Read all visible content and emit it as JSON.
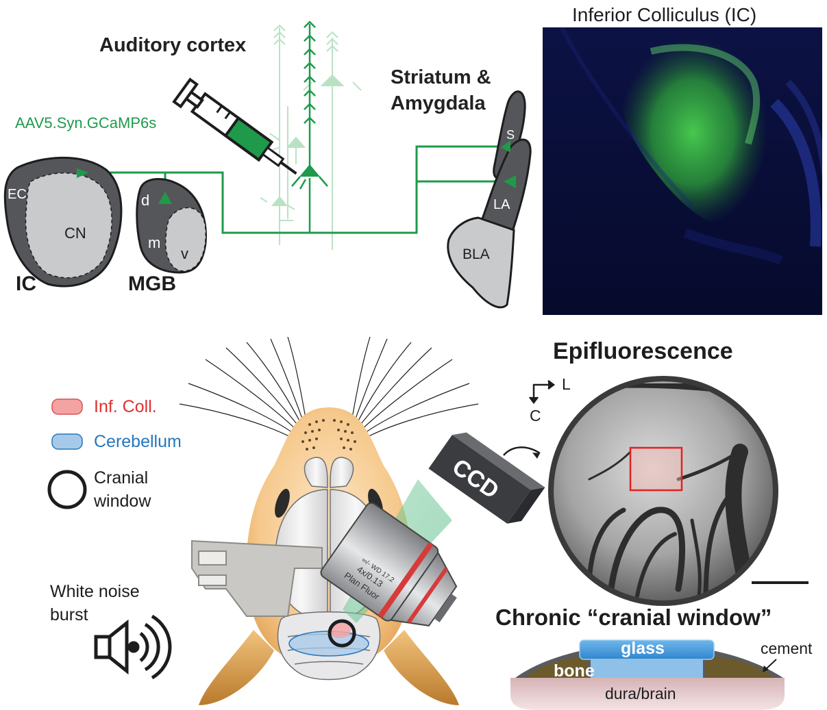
{
  "colors": {
    "green": "#1e9a4a",
    "light_green": "#b9e2c4",
    "dark_gray": "#555659",
    "light_gray": "#c9cacc",
    "red": "#e03030",
    "blue": "#2577bd",
    "ic_panel_bg": "#0a0d3a",
    "ic_fluorescence": "#3fc04a"
  },
  "top": {
    "auditory_cortex": "Auditory cortex",
    "virus": "AAV5.Syn.GCaMP6s",
    "striatum_line1": "Striatum &",
    "striatum_line2": "Amygdala",
    "ic_region": {
      "title": "IC",
      "ec": "EC",
      "cn": "CN"
    },
    "mgb_region": {
      "title": "MGB",
      "d": "d",
      "m": "m",
      "v": "v"
    },
    "amygdala_region": {
      "s": "S",
      "la": "LA",
      "bla": "BLA"
    },
    "ic_image_title": "Inferior Colliculus (IC)"
  },
  "bottom": {
    "legend": {
      "inf_coll": "Inf. Coll.",
      "cerebellum": "Cerebellum",
      "cranial_line1": "Cranial",
      "cranial_line2": "window"
    },
    "sound": {
      "line1": "White noise",
      "line2": "burst"
    },
    "ccd": "CCD",
    "objective": {
      "line1": "Plan Fluor",
      "line2": "4x/0.13",
      "line3": "∞/- WD 17.2"
    },
    "epi_title": "Epifluorescence",
    "axis_l": "L",
    "axis_c": "C",
    "chronic_title": "Chronic “cranial window”",
    "layers": {
      "glass": "glass",
      "bone": "bone",
      "cement": "cement",
      "dura": "dura/brain"
    }
  }
}
